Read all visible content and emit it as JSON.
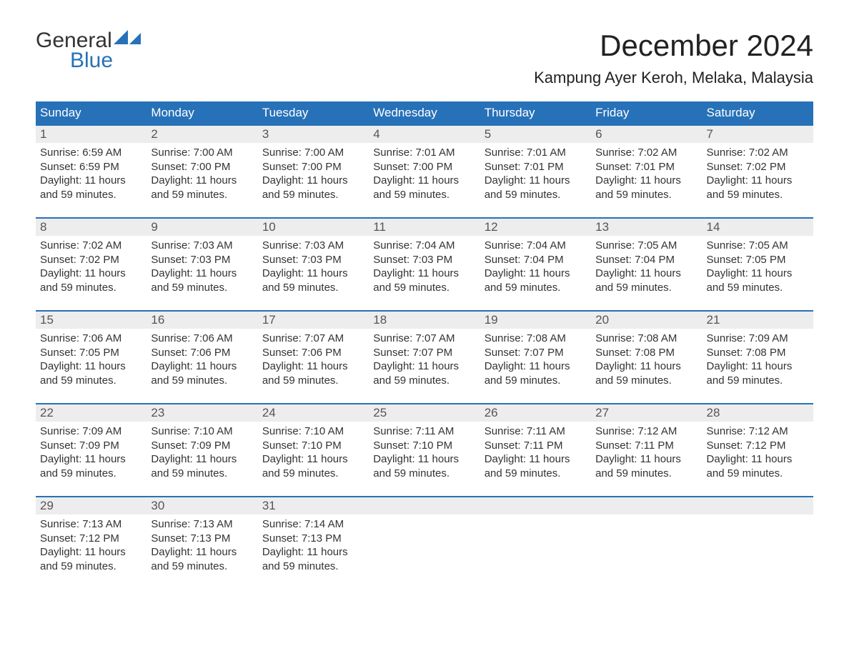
{
  "logo": {
    "word1": "General",
    "word2": "Blue",
    "brand_color": "#2771b8"
  },
  "title": "December 2024",
  "subtitle": "Kampung Ayer Keroh, Melaka, Malaysia",
  "colors": {
    "header_bg": "#2771b8",
    "header_text": "#ffffff",
    "daynum_bg": "#ededed",
    "daynum_text": "#555555",
    "body_text": "#333333",
    "page_bg": "#ffffff",
    "week_border": "#2771b8"
  },
  "day_labels": [
    "Sunday",
    "Monday",
    "Tuesday",
    "Wednesday",
    "Thursday",
    "Friday",
    "Saturday"
  ],
  "daylight_text": "Daylight: 11 hours and 59 minutes.",
  "sunrise_prefix": "Sunrise: ",
  "sunset_prefix": "Sunset: ",
  "weeks": [
    [
      {
        "n": "1",
        "sr": "6:59 AM",
        "ss": "6:59 PM"
      },
      {
        "n": "2",
        "sr": "7:00 AM",
        "ss": "7:00 PM"
      },
      {
        "n": "3",
        "sr": "7:00 AM",
        "ss": "7:00 PM"
      },
      {
        "n": "4",
        "sr": "7:01 AM",
        "ss": "7:00 PM"
      },
      {
        "n": "5",
        "sr": "7:01 AM",
        "ss": "7:01 PM"
      },
      {
        "n": "6",
        "sr": "7:02 AM",
        "ss": "7:01 PM"
      },
      {
        "n": "7",
        "sr": "7:02 AM",
        "ss": "7:02 PM"
      }
    ],
    [
      {
        "n": "8",
        "sr": "7:02 AM",
        "ss": "7:02 PM"
      },
      {
        "n": "9",
        "sr": "7:03 AM",
        "ss": "7:03 PM"
      },
      {
        "n": "10",
        "sr": "7:03 AM",
        "ss": "7:03 PM"
      },
      {
        "n": "11",
        "sr": "7:04 AM",
        "ss": "7:03 PM"
      },
      {
        "n": "12",
        "sr": "7:04 AM",
        "ss": "7:04 PM"
      },
      {
        "n": "13",
        "sr": "7:05 AM",
        "ss": "7:04 PM"
      },
      {
        "n": "14",
        "sr": "7:05 AM",
        "ss": "7:05 PM"
      }
    ],
    [
      {
        "n": "15",
        "sr": "7:06 AM",
        "ss": "7:05 PM"
      },
      {
        "n": "16",
        "sr": "7:06 AM",
        "ss": "7:06 PM"
      },
      {
        "n": "17",
        "sr": "7:07 AM",
        "ss": "7:06 PM"
      },
      {
        "n": "18",
        "sr": "7:07 AM",
        "ss": "7:07 PM"
      },
      {
        "n": "19",
        "sr": "7:08 AM",
        "ss": "7:07 PM"
      },
      {
        "n": "20",
        "sr": "7:08 AM",
        "ss": "7:08 PM"
      },
      {
        "n": "21",
        "sr": "7:09 AM",
        "ss": "7:08 PM"
      }
    ],
    [
      {
        "n": "22",
        "sr": "7:09 AM",
        "ss": "7:09 PM"
      },
      {
        "n": "23",
        "sr": "7:10 AM",
        "ss": "7:09 PM"
      },
      {
        "n": "24",
        "sr": "7:10 AM",
        "ss": "7:10 PM"
      },
      {
        "n": "25",
        "sr": "7:11 AM",
        "ss": "7:10 PM"
      },
      {
        "n": "26",
        "sr": "7:11 AM",
        "ss": "7:11 PM"
      },
      {
        "n": "27",
        "sr": "7:12 AM",
        "ss": "7:11 PM"
      },
      {
        "n": "28",
        "sr": "7:12 AM",
        "ss": "7:12 PM"
      }
    ],
    [
      {
        "n": "29",
        "sr": "7:13 AM",
        "ss": "7:12 PM"
      },
      {
        "n": "30",
        "sr": "7:13 AM",
        "ss": "7:13 PM"
      },
      {
        "n": "31",
        "sr": "7:14 AM",
        "ss": "7:13 PM"
      },
      null,
      null,
      null,
      null
    ]
  ]
}
